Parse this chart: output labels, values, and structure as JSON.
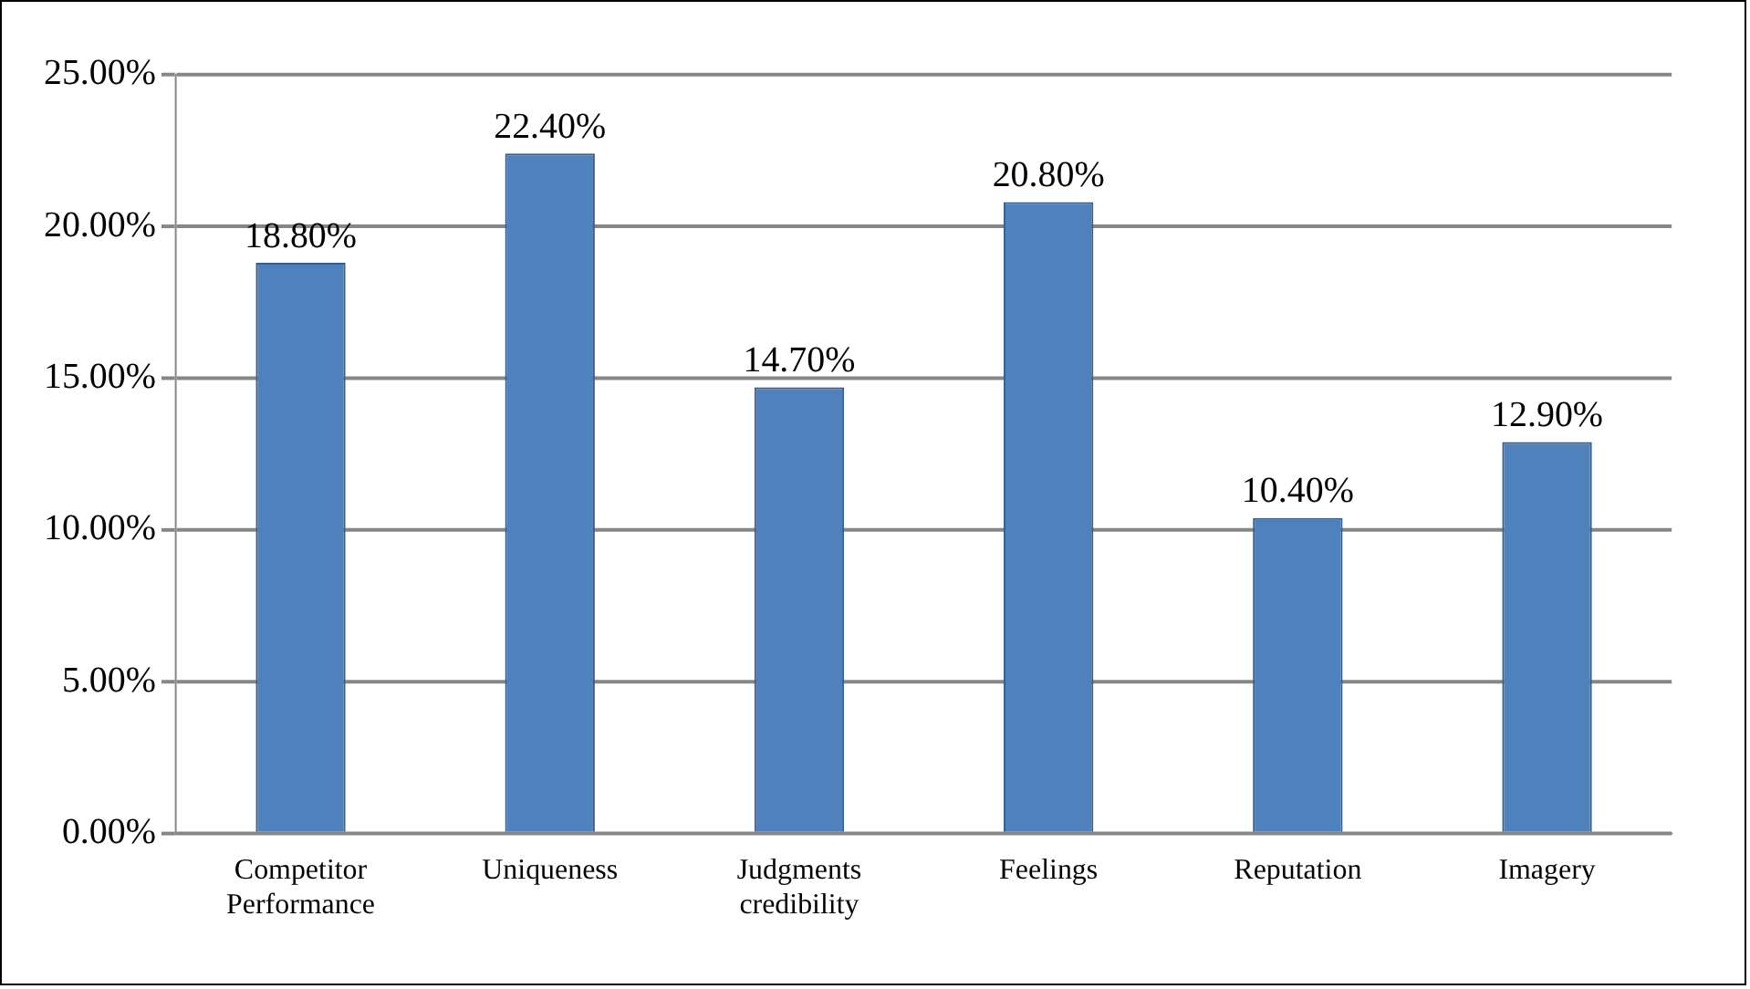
{
  "chart_data": {
    "type": "bar",
    "categories": [
      "Competitor Performance",
      "Uniqueness",
      "Judgments credibility",
      "Feelings",
      "Reputation",
      "Imagery"
    ],
    "values": [
      18.8,
      22.4,
      14.7,
      20.8,
      10.4,
      12.9
    ],
    "value_labels": [
      "18.80%",
      "22.40%",
      "14.70%",
      "20.80%",
      "10.40%",
      "12.90%"
    ],
    "color": "#4f81bd",
    "ylim": [
      0,
      25
    ],
    "yticks": [
      {
        "value": 0,
        "label": "0.00%"
      },
      {
        "value": 5,
        "label": "5.00%"
      },
      {
        "value": 10,
        "label": "10.00%"
      },
      {
        "value": 15,
        "label": "15.00%"
      },
      {
        "value": 20,
        "label": "20.00%"
      },
      {
        "value": 25,
        "label": "25.00%"
      }
    ],
    "grid": "y",
    "legend": false
  }
}
